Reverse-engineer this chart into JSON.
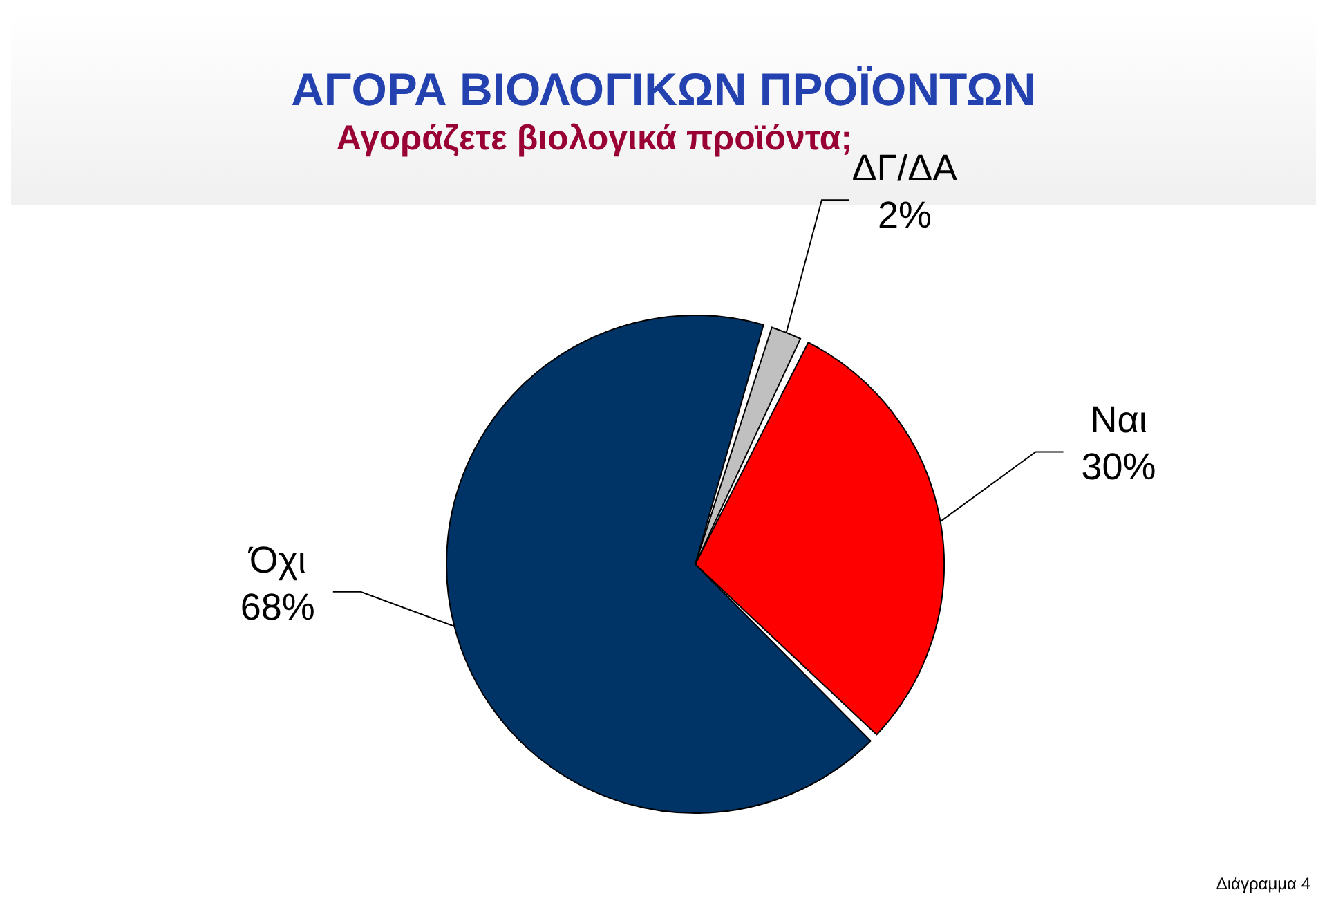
{
  "chart_data": {
    "type": "pie",
    "title": "ΑΓΟΡΑ ΒΙΟΛΟΓΙΚΩΝ ΠΡΟΪΟΝΤΩΝ",
    "subtitle": "Αγοράζετε βιολογικά προϊόντα;",
    "categories": [
      "Ναι",
      "Όχι",
      "ΔΓ/ΔΑ"
    ],
    "values": [
      30,
      68,
      2
    ],
    "value_labels": [
      "30%",
      "68%",
      "2%"
    ],
    "colors": [
      "#ff0000",
      "#003366",
      "#c0c0c0"
    ],
    "annotations": [
      "Διάγραμμα 4"
    ]
  }
}
